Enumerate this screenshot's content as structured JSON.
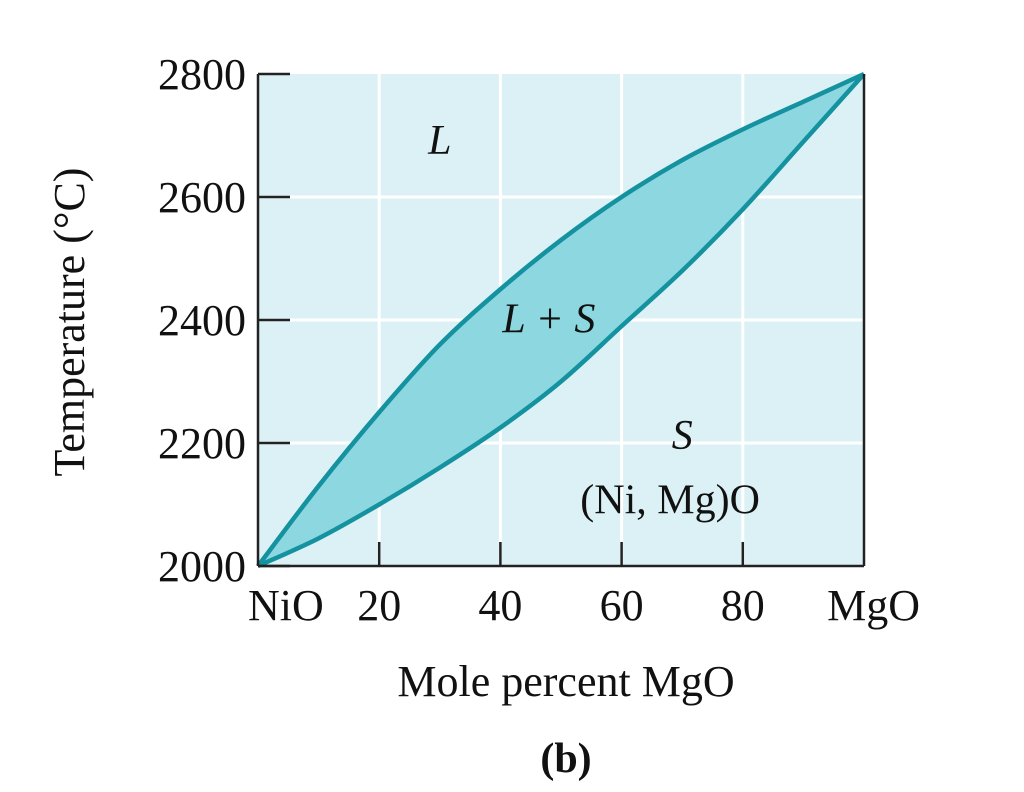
{
  "chart_data": {
    "type": "line",
    "title": "",
    "panel_label": "(b)",
    "xlabel": "Mole percent MgO",
    "ylabel": "Temperature (°C)",
    "xlim": [
      0,
      100
    ],
    "ylim": [
      2000,
      2800
    ],
    "x_tick_labels": [
      {
        "value": 0,
        "label": "NiO"
      },
      {
        "value": 20,
        "label": "20"
      },
      {
        "value": 40,
        "label": "40"
      },
      {
        "value": 60,
        "label": "60"
      },
      {
        "value": 80,
        "label": "80"
      },
      {
        "value": 100,
        "label": "MgO"
      }
    ],
    "y_tick_labels": [
      {
        "value": 2000,
        "label": "2000"
      },
      {
        "value": 2200,
        "label": "2200"
      },
      {
        "value": 2400,
        "label": "2400"
      },
      {
        "value": 2600,
        "label": "2600"
      },
      {
        "value": 2800,
        "label": "2800"
      }
    ],
    "grid": true,
    "series": [
      {
        "x": [
          0,
          10,
          20,
          30,
          40,
          50,
          60,
          70,
          80,
          90,
          100
        ],
        "y": [
          2000,
          2130,
          2250,
          2360,
          2450,
          2530,
          2600,
          2660,
          2710,
          2755,
          2800
        ]
      },
      {
        "x": [
          0,
          10,
          20,
          30,
          40,
          50,
          60,
          70,
          80,
          90,
          100
        ],
        "y": [
          2000,
          2045,
          2100,
          2160,
          2225,
          2300,
          2390,
          2480,
          2580,
          2690,
          2800
        ]
      }
    ],
    "region_labels": [
      {
        "text": "L",
        "x": 30,
        "y": 2670
      },
      {
        "text": "L + S",
        "x": 48,
        "y": 2380
      },
      {
        "text": "S",
        "x": 70,
        "y": 2190
      },
      {
        "text": "(Ni, Mg)O",
        "x": 68,
        "y": 2085
      }
    ],
    "colors": {
      "plot_background": "#dcf1f5",
      "two_phase_fill": "#8dd8e0",
      "curve": "#1592a0",
      "grid": "#ffffff",
      "axis": "#222222"
    }
  }
}
